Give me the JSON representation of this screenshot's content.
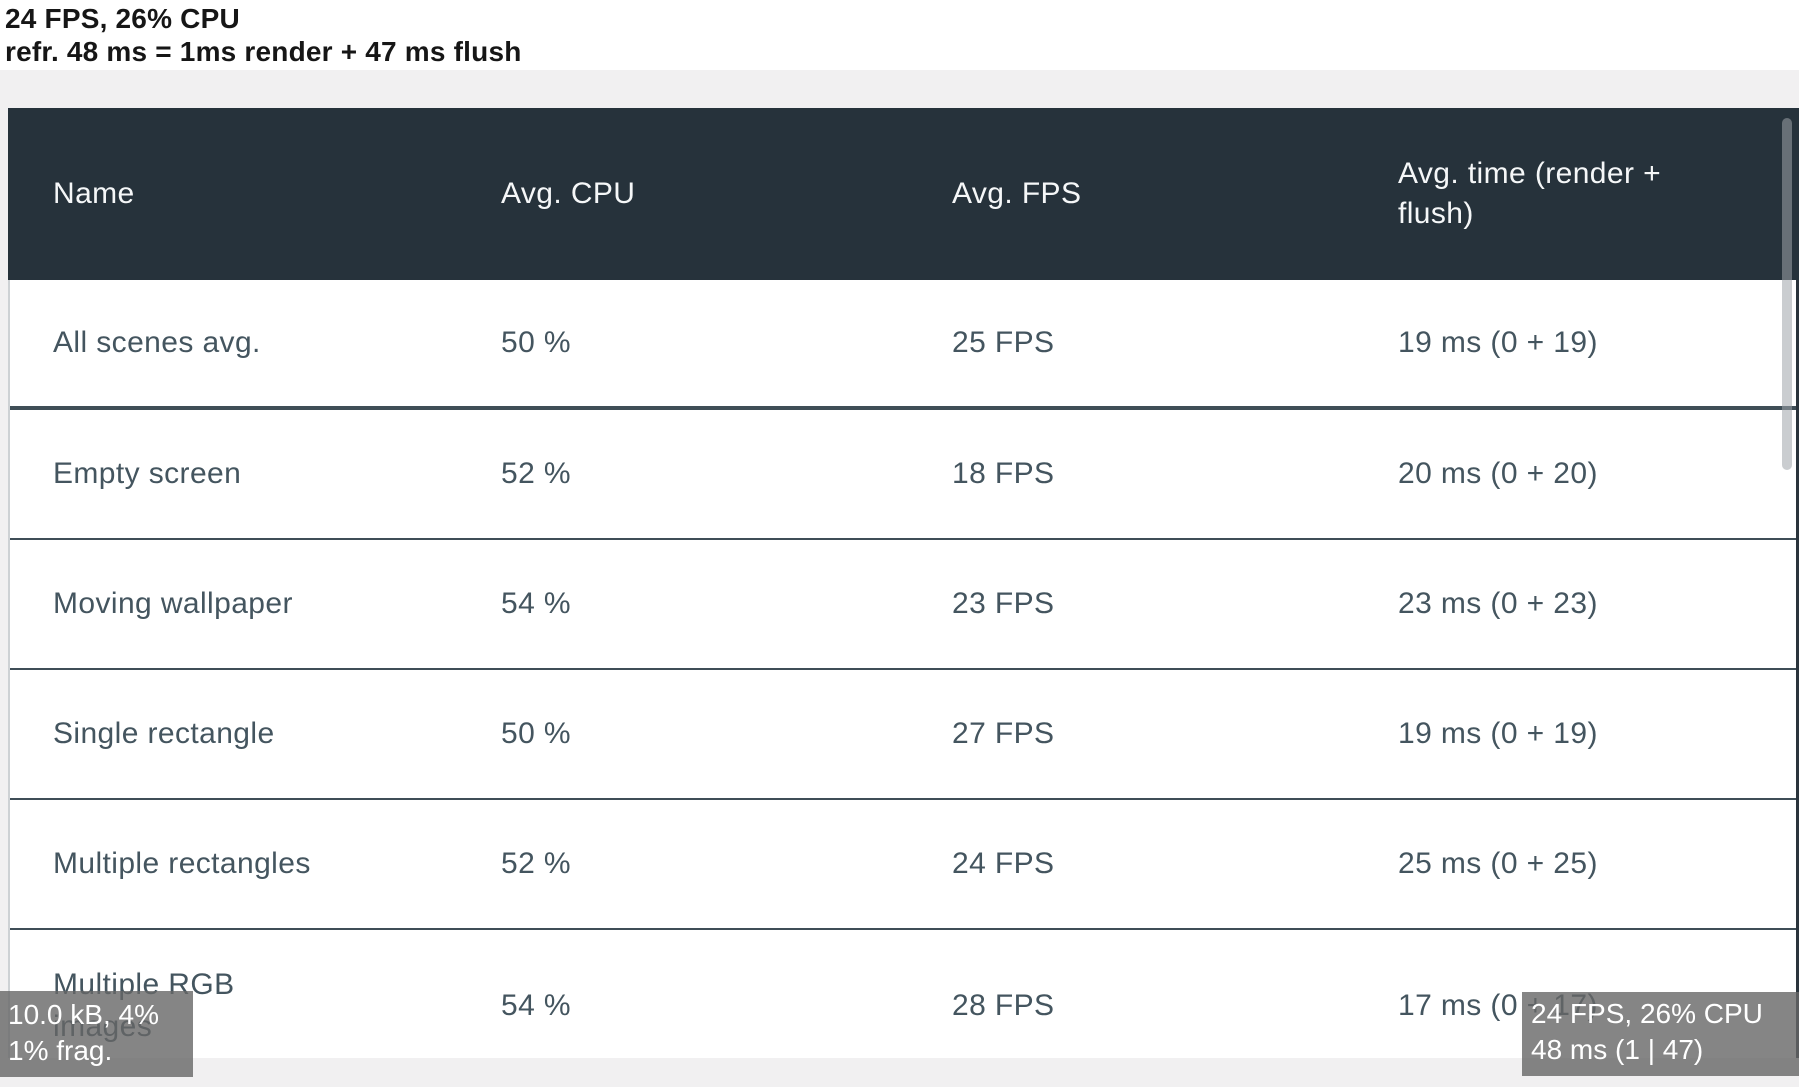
{
  "status": {
    "line1": "24 FPS, 26% CPU",
    "line2": "refr. 48 ms = 1ms render + 47 ms flush"
  },
  "table": {
    "columns": [
      "Name",
      "Avg. CPU",
      "Avg. FPS",
      "Avg. time (render + flush)"
    ],
    "rows": [
      {
        "name": "All scenes avg.",
        "cpu": "50 %",
        "fps": "25 FPS",
        "time": "19 ms (0 + 19)"
      },
      {
        "name": "Empty screen",
        "cpu": "52 %",
        "fps": "18 FPS",
        "time": "20 ms (0 + 20)"
      },
      {
        "name": "Moving wallpaper",
        "cpu": "54 %",
        "fps": "23 FPS",
        "time": "23 ms (0 + 23)"
      },
      {
        "name": "Single rectangle",
        "cpu": "50 %",
        "fps": "27 FPS",
        "time": "19 ms (0 + 19)"
      },
      {
        "name": "Multiple rectangles",
        "cpu": "52 %",
        "fps": "24 FPS",
        "time": "25 ms (0 + 25)"
      },
      {
        "name": "Multiple RGB images",
        "cpu": "54 %",
        "fps": "28 FPS",
        "time": "17 ms (0 + 17)"
      }
    ]
  },
  "hud": {
    "bottom_left": {
      "line1": "10.0 kB, 4%",
      "line2": "1% frag."
    },
    "bottom_right": {
      "line1": "24 FPS, 26% CPU",
      "line2": "48 ms (1 | 47)"
    }
  },
  "colors": {
    "header_bg": "#26323b",
    "header_text": "#f5f7f8",
    "row_text": "#44555f",
    "divider": "#3f4e57",
    "page_bg": "#f1f0f1",
    "table_bg": "#ffffff",
    "hud_bg": "rgba(102,102,102,0.8)",
    "hud_text": "#ffffff",
    "status_text": "#161616"
  }
}
